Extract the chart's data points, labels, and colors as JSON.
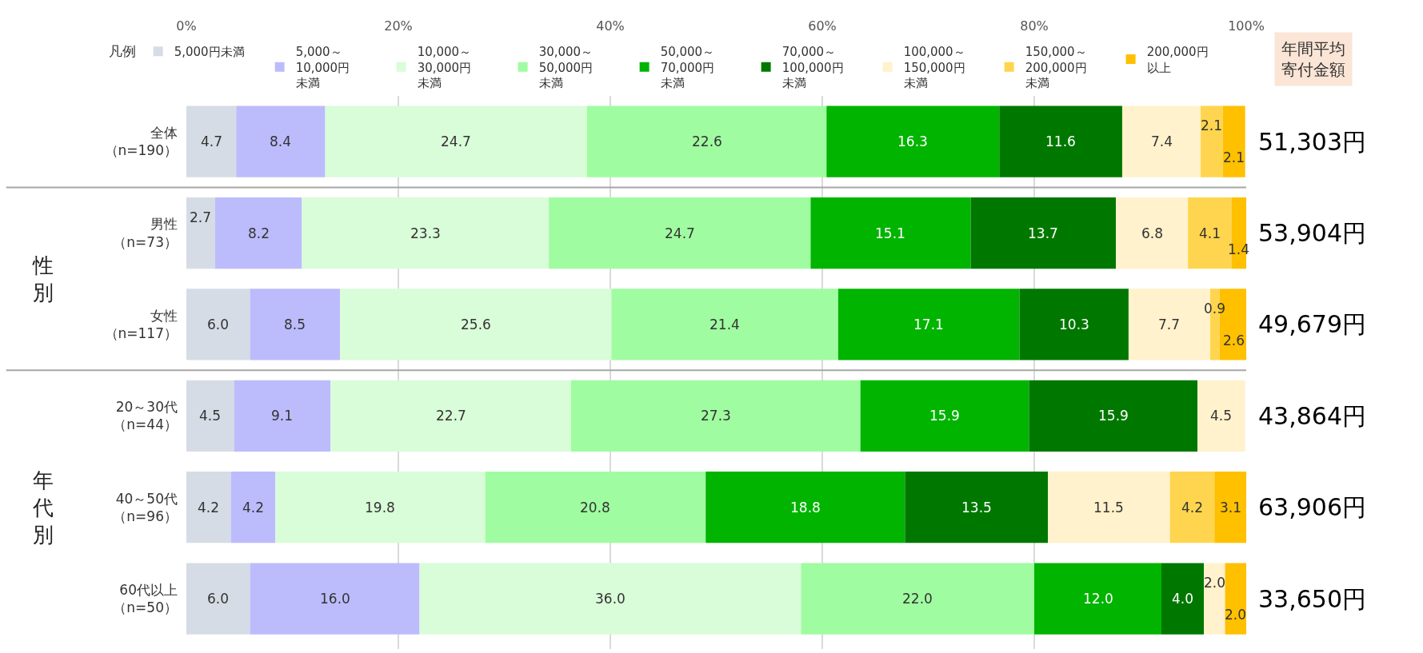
{
  "chart_data": {
    "type": "bar",
    "orientation": "horizontal",
    "stacked": true,
    "grid": "x",
    "legend": "top",
    "legend_title": "凡例",
    "categories": [
      "全体（n=190）",
      "男性（n=73）",
      "女性（n=117）",
      "20～30代（n=44）",
      "40～50代（n=96）",
      "60代以上（n=50）"
    ],
    "xlim": [
      0,
      100
    ],
    "xticks": [
      {
        "value": 0,
        "label": "0%"
      },
      {
        "value": 20,
        "label": "20%"
      },
      {
        "value": 40,
        "label": "40%"
      },
      {
        "value": 60,
        "label": "60%"
      },
      {
        "value": 80,
        "label": "80%"
      },
      {
        "value": 100,
        "label": "100%"
      }
    ],
    "series": [
      {
        "name": "5,000円未満",
        "color": "#d6dce5",
        "values": [
          4.7,
          2.7,
          6.0,
          4.5,
          4.2,
          6.0
        ],
        "value_labels": [
          "4.7",
          "2.7",
          "6.0",
          "4.5",
          "4.2",
          "6.0"
        ]
      },
      {
        "name": "5,000～10,000円未満",
        "color": "#bcbcfc",
        "values": [
          8.4,
          8.2,
          8.5,
          9.1,
          4.2,
          16.0
        ],
        "value_labels": [
          "8.4",
          "8.2",
          "8.5",
          "9.1",
          "4.2",
          "16.0"
        ]
      },
      {
        "name": "10,000～30,000円未満",
        "color": "#d9fcd9",
        "values": [
          24.7,
          23.3,
          25.6,
          22.7,
          19.8,
          36.0
        ],
        "value_labels": [
          "24.7",
          "23.3",
          "25.6",
          "22.7",
          "19.8",
          "36.0"
        ]
      },
      {
        "name": "30,000～50,000円未満",
        "color": "#a0fca0",
        "values": [
          22.6,
          24.7,
          21.4,
          27.3,
          20.8,
          22.0
        ],
        "value_labels": [
          "22.6",
          "24.7",
          "21.4",
          "27.3",
          "20.8",
          "22.0"
        ]
      },
      {
        "name": "50,000～70,000円未満",
        "color": "#00b400",
        "values": [
          16.3,
          15.1,
          17.1,
          15.9,
          18.8,
          12.0
        ],
        "value_labels": [
          "16.3",
          "15.1",
          "17.1",
          "15.9",
          "18.8",
          "12.0"
        ]
      },
      {
        "name": "70,000～100,000円未満",
        "color": "#007800",
        "values": [
          11.6,
          13.7,
          10.3,
          15.9,
          13.5,
          4.0
        ],
        "value_labels": [
          "11.6",
          "13.7",
          "10.3",
          "15.9",
          "13.5",
          "4.0"
        ]
      },
      {
        "name": "100,000～150,000円未満",
        "color": "#fff2cc",
        "values": [
          7.4,
          6.8,
          7.7,
          4.5,
          11.5,
          2.0
        ],
        "value_labels": [
          "7.4",
          "6.8",
          "7.7",
          "4.5",
          "11.5",
          "2.0"
        ]
      },
      {
        "name": "150,000～200,000円未満",
        "color": "#ffd54f",
        "values": [
          2.1,
          4.1,
          0.9,
          null,
          4.2,
          null
        ],
        "value_labels": [
          "2.1",
          "4.1",
          "0.9",
          null,
          "4.2",
          null
        ]
      },
      {
        "name": "200,000円以上",
        "color": "#ffc000",
        "values": [
          2.1,
          1.4,
          2.6,
          null,
          3.1,
          2.0
        ],
        "value_labels": [
          "2.1",
          "1.4",
          "2.6",
          null,
          "3.1",
          "2.0"
        ]
      }
    ],
    "annotations": [
      "年間平均寄付金額",
      "性別",
      "年代別",
      "51,303円",
      "53,904円",
      "49,679円",
      "43,864円",
      "63,906円",
      "33,650円"
    ]
  }
}
